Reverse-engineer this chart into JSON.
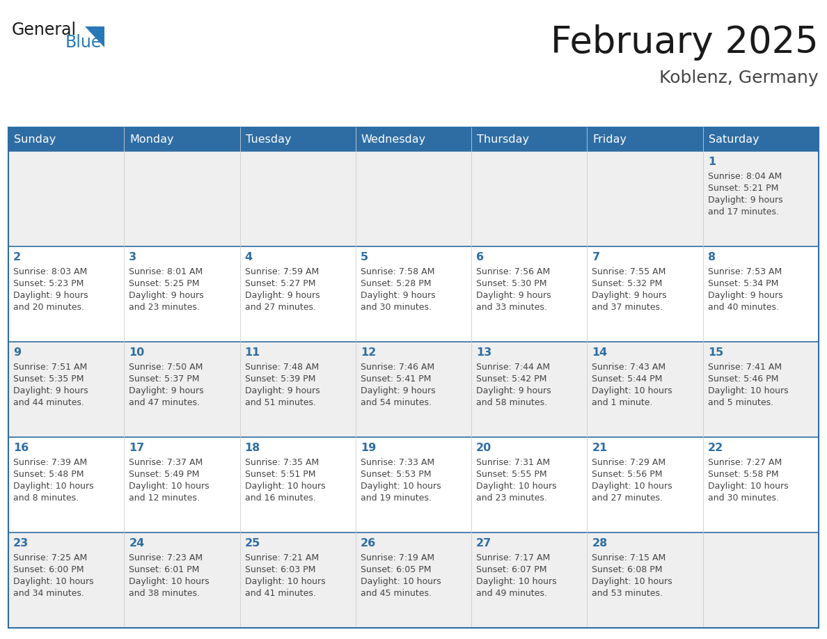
{
  "title": "February 2025",
  "subtitle": "Koblenz, Germany",
  "header_bg": "#2E6DA4",
  "header_text_color": "#FFFFFF",
  "day_names": [
    "Sunday",
    "Monday",
    "Tuesday",
    "Wednesday",
    "Thursday",
    "Friday",
    "Saturday"
  ],
  "alt_row_bg": "#EFEFEF",
  "normal_row_bg": "#FFFFFF",
  "cell_text_color": "#444444",
  "day_number_color": "#2E6DA4",
  "title_color": "#1A1A1A",
  "subtitle_color": "#444444",
  "logo_general_color": "#1A1A1A",
  "logo_blue_color": "#2878B8",
  "border_color": "#2E6DA4",
  "calendar_data": [
    [
      null,
      null,
      null,
      null,
      null,
      null,
      {
        "day": 1,
        "sunrise": "8:04 AM",
        "sunset": "5:21 PM",
        "daylight_line1": "Daylight: 9 hours",
        "daylight_line2": "and 17 minutes."
      }
    ],
    [
      {
        "day": 2,
        "sunrise": "8:03 AM",
        "sunset": "5:23 PM",
        "daylight_line1": "Daylight: 9 hours",
        "daylight_line2": "and 20 minutes."
      },
      {
        "day": 3,
        "sunrise": "8:01 AM",
        "sunset": "5:25 PM",
        "daylight_line1": "Daylight: 9 hours",
        "daylight_line2": "and 23 minutes."
      },
      {
        "day": 4,
        "sunrise": "7:59 AM",
        "sunset": "5:27 PM",
        "daylight_line1": "Daylight: 9 hours",
        "daylight_line2": "and 27 minutes."
      },
      {
        "day": 5,
        "sunrise": "7:58 AM",
        "sunset": "5:28 PM",
        "daylight_line1": "Daylight: 9 hours",
        "daylight_line2": "and 30 minutes."
      },
      {
        "day": 6,
        "sunrise": "7:56 AM",
        "sunset": "5:30 PM",
        "daylight_line1": "Daylight: 9 hours",
        "daylight_line2": "and 33 minutes."
      },
      {
        "day": 7,
        "sunrise": "7:55 AM",
        "sunset": "5:32 PM",
        "daylight_line1": "Daylight: 9 hours",
        "daylight_line2": "and 37 minutes."
      },
      {
        "day": 8,
        "sunrise": "7:53 AM",
        "sunset": "5:34 PM",
        "daylight_line1": "Daylight: 9 hours",
        "daylight_line2": "and 40 minutes."
      }
    ],
    [
      {
        "day": 9,
        "sunrise": "7:51 AM",
        "sunset": "5:35 PM",
        "daylight_line1": "Daylight: 9 hours",
        "daylight_line2": "and 44 minutes."
      },
      {
        "day": 10,
        "sunrise": "7:50 AM",
        "sunset": "5:37 PM",
        "daylight_line1": "Daylight: 9 hours",
        "daylight_line2": "and 47 minutes."
      },
      {
        "day": 11,
        "sunrise": "7:48 AM",
        "sunset": "5:39 PM",
        "daylight_line1": "Daylight: 9 hours",
        "daylight_line2": "and 51 minutes."
      },
      {
        "day": 12,
        "sunrise": "7:46 AM",
        "sunset": "5:41 PM",
        "daylight_line1": "Daylight: 9 hours",
        "daylight_line2": "and 54 minutes."
      },
      {
        "day": 13,
        "sunrise": "7:44 AM",
        "sunset": "5:42 PM",
        "daylight_line1": "Daylight: 9 hours",
        "daylight_line2": "and 58 minutes."
      },
      {
        "day": 14,
        "sunrise": "7:43 AM",
        "sunset": "5:44 PM",
        "daylight_line1": "Daylight: 10 hours",
        "daylight_line2": "and 1 minute."
      },
      {
        "day": 15,
        "sunrise": "7:41 AM",
        "sunset": "5:46 PM",
        "daylight_line1": "Daylight: 10 hours",
        "daylight_line2": "and 5 minutes."
      }
    ],
    [
      {
        "day": 16,
        "sunrise": "7:39 AM",
        "sunset": "5:48 PM",
        "daylight_line1": "Daylight: 10 hours",
        "daylight_line2": "and 8 minutes."
      },
      {
        "day": 17,
        "sunrise": "7:37 AM",
        "sunset": "5:49 PM",
        "daylight_line1": "Daylight: 10 hours",
        "daylight_line2": "and 12 minutes."
      },
      {
        "day": 18,
        "sunrise": "7:35 AM",
        "sunset": "5:51 PM",
        "daylight_line1": "Daylight: 10 hours",
        "daylight_line2": "and 16 minutes."
      },
      {
        "day": 19,
        "sunrise": "7:33 AM",
        "sunset": "5:53 PM",
        "daylight_line1": "Daylight: 10 hours",
        "daylight_line2": "and 19 minutes."
      },
      {
        "day": 20,
        "sunrise": "7:31 AM",
        "sunset": "5:55 PM",
        "daylight_line1": "Daylight: 10 hours",
        "daylight_line2": "and 23 minutes."
      },
      {
        "day": 21,
        "sunrise": "7:29 AM",
        "sunset": "5:56 PM",
        "daylight_line1": "Daylight: 10 hours",
        "daylight_line2": "and 27 minutes."
      },
      {
        "day": 22,
        "sunrise": "7:27 AM",
        "sunset": "5:58 PM",
        "daylight_line1": "Daylight: 10 hours",
        "daylight_line2": "and 30 minutes."
      }
    ],
    [
      {
        "day": 23,
        "sunrise": "7:25 AM",
        "sunset": "6:00 PM",
        "daylight_line1": "Daylight: 10 hours",
        "daylight_line2": "and 34 minutes."
      },
      {
        "day": 24,
        "sunrise": "7:23 AM",
        "sunset": "6:01 PM",
        "daylight_line1": "Daylight: 10 hours",
        "daylight_line2": "and 38 minutes."
      },
      {
        "day": 25,
        "sunrise": "7:21 AM",
        "sunset": "6:03 PM",
        "daylight_line1": "Daylight: 10 hours",
        "daylight_line2": "and 41 minutes."
      },
      {
        "day": 26,
        "sunrise": "7:19 AM",
        "sunset": "6:05 PM",
        "daylight_line1": "Daylight: 10 hours",
        "daylight_line2": "and 45 minutes."
      },
      {
        "day": 27,
        "sunrise": "7:17 AM",
        "sunset": "6:07 PM",
        "daylight_line1": "Daylight: 10 hours",
        "daylight_line2": "and 49 minutes."
      },
      {
        "day": 28,
        "sunrise": "7:15 AM",
        "sunset": "6:08 PM",
        "daylight_line1": "Daylight: 10 hours",
        "daylight_line2": "and 53 minutes."
      },
      null
    ]
  ]
}
